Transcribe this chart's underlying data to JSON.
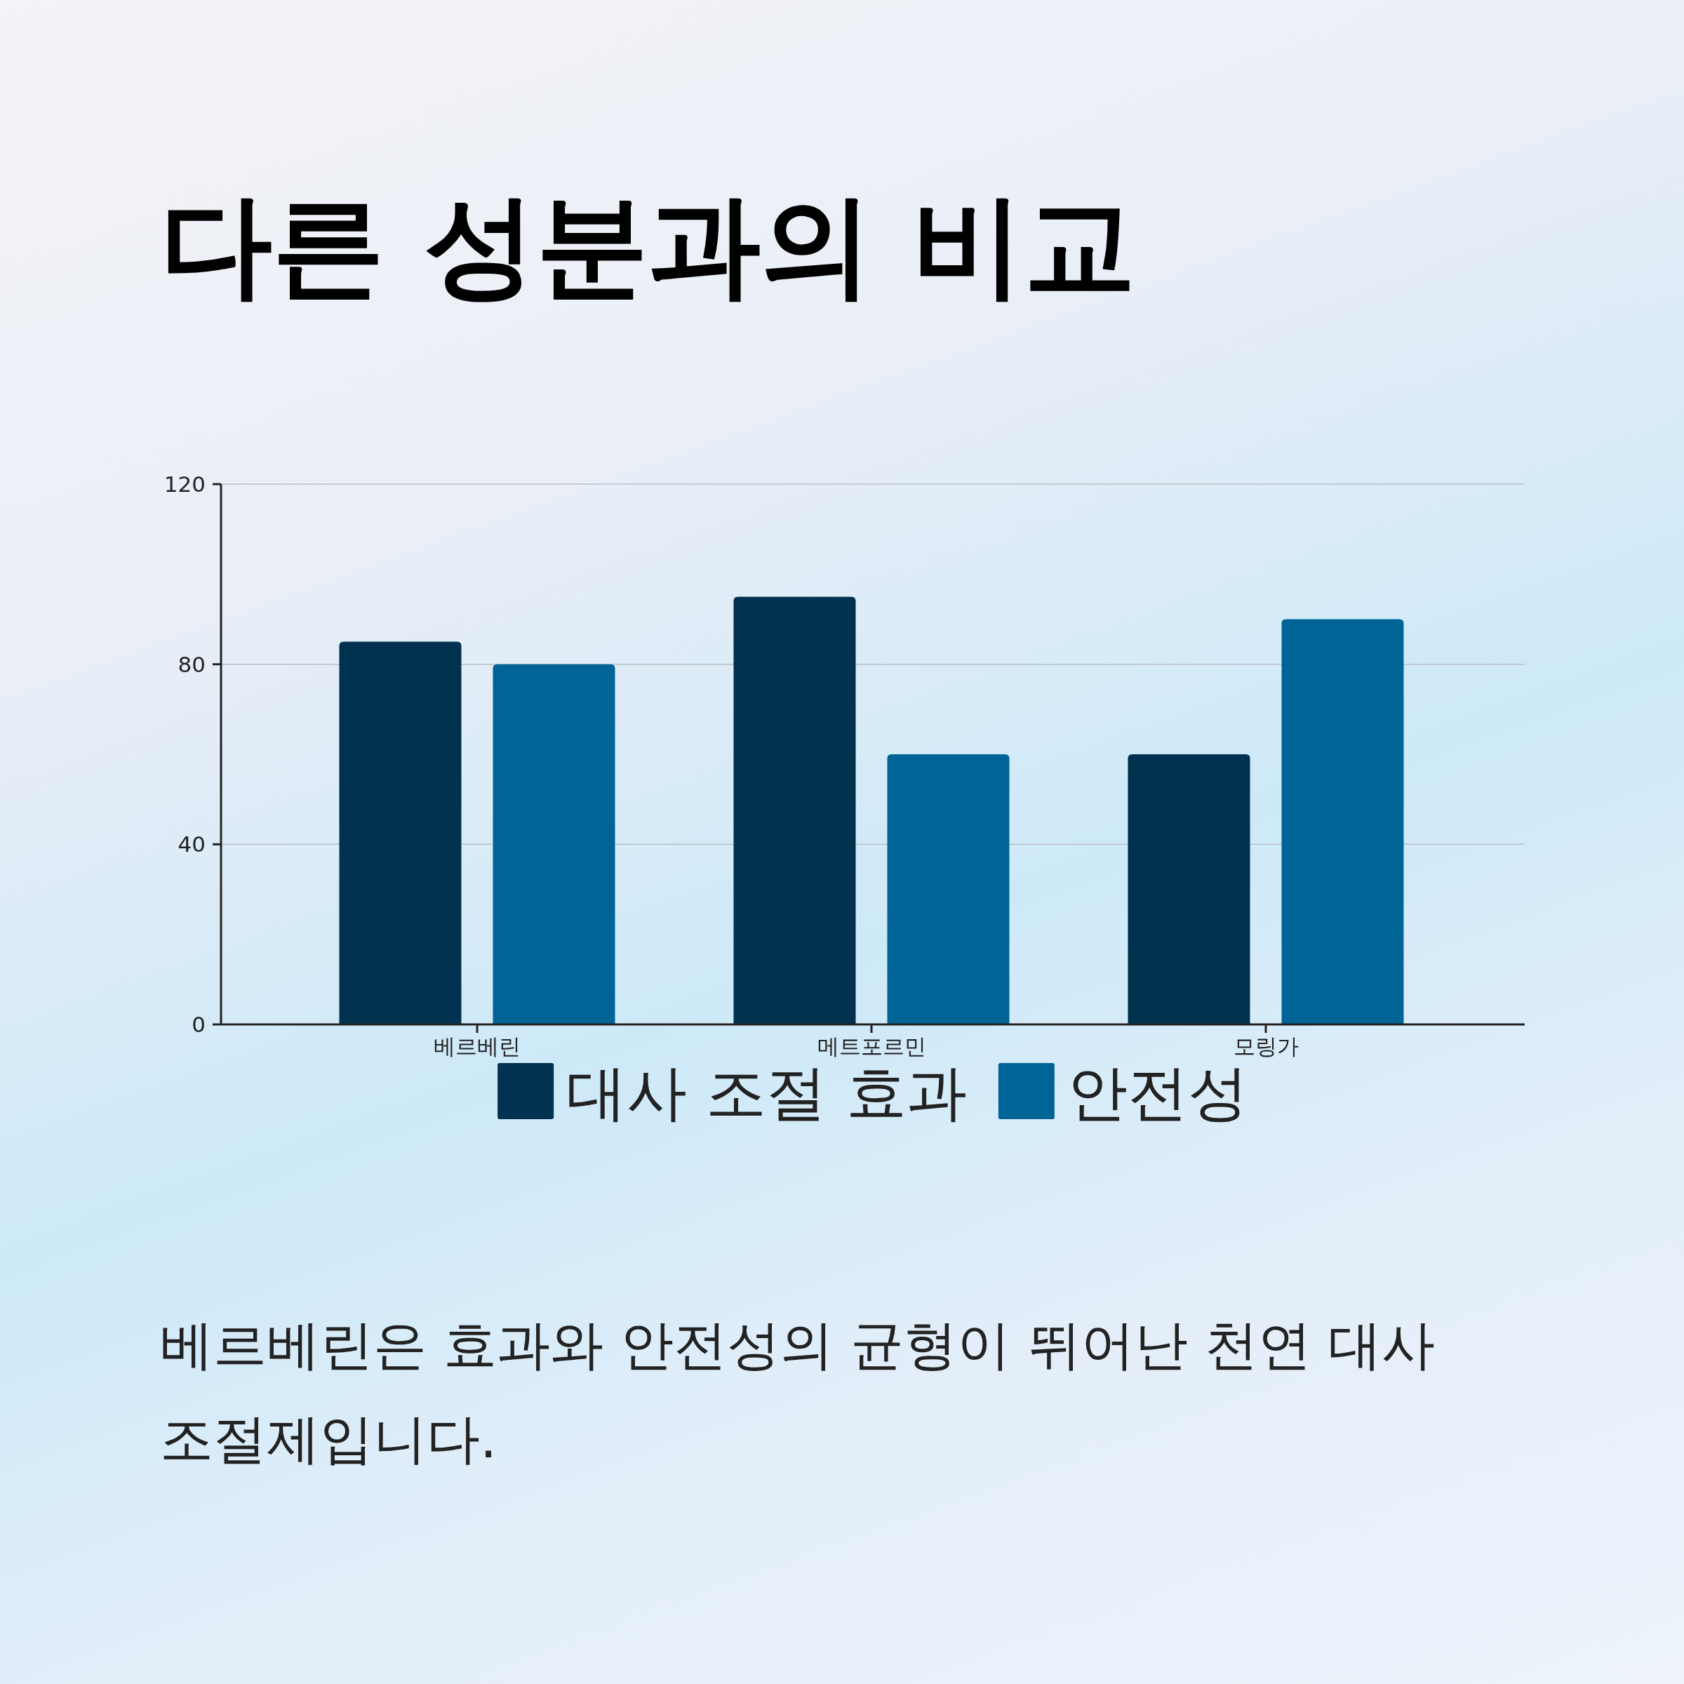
{
  "chart_data": {
    "type": "bar",
    "title": "다른 성분과의 비교",
    "categories": [
      "베르베린",
      "메트포르민",
      "모링가"
    ],
    "series": [
      {
        "name": "대사 조절 효과",
        "color": "#00324f",
        "values": [
          85,
          95,
          60
        ]
      },
      {
        "name": "안전성",
        "color": "#006496",
        "values": [
          80,
          60,
          90
        ]
      }
    ],
    "ylim": [
      0,
      120
    ],
    "yticks": [
      0,
      40,
      80,
      120
    ],
    "grid": "y",
    "legend": "bottom",
    "annotations": [
      "베르베린은 효과와 안전성의 균형이 뛰어난 천연 대사 조절제입니다."
    ]
  }
}
